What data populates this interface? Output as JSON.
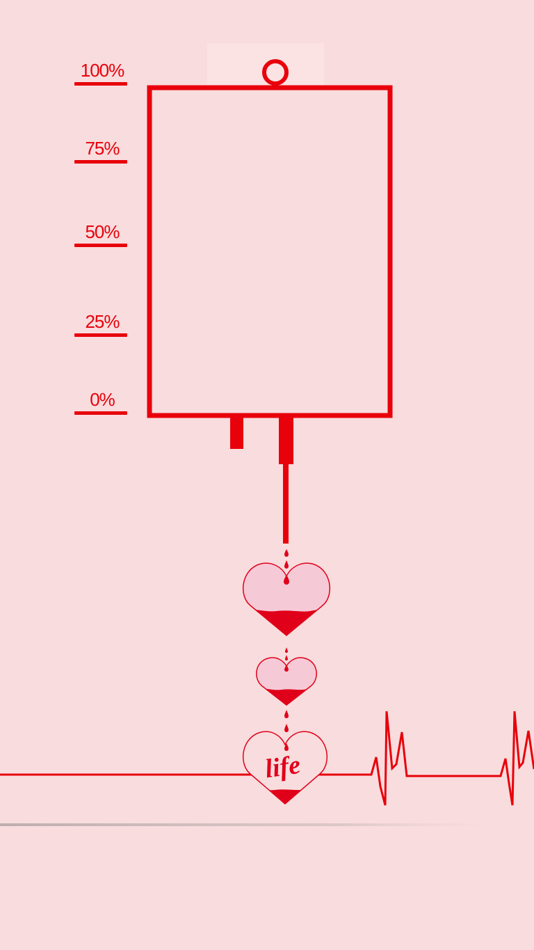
{
  "scale": {
    "levels": [
      {
        "label": "100%"
      },
      {
        "label": "75%"
      },
      {
        "label": "50%"
      },
      {
        "label": "25%"
      },
      {
        "label": "0%"
      }
    ]
  },
  "bag": {
    "fill_level_percent": 0
  },
  "hearts": [
    {
      "name": "top-heart",
      "fill_fraction": 0.35
    },
    {
      "name": "middle-heart",
      "fill_fraction": 0.3
    },
    {
      "name": "life-heart",
      "fill_fraction": 0.22,
      "logo_text": "life"
    }
  ],
  "colors": {
    "background": "#f9dcdd",
    "accent": "#e8000b",
    "heart_fill": "#f6c9d7",
    "blood": "#e0001a"
  }
}
